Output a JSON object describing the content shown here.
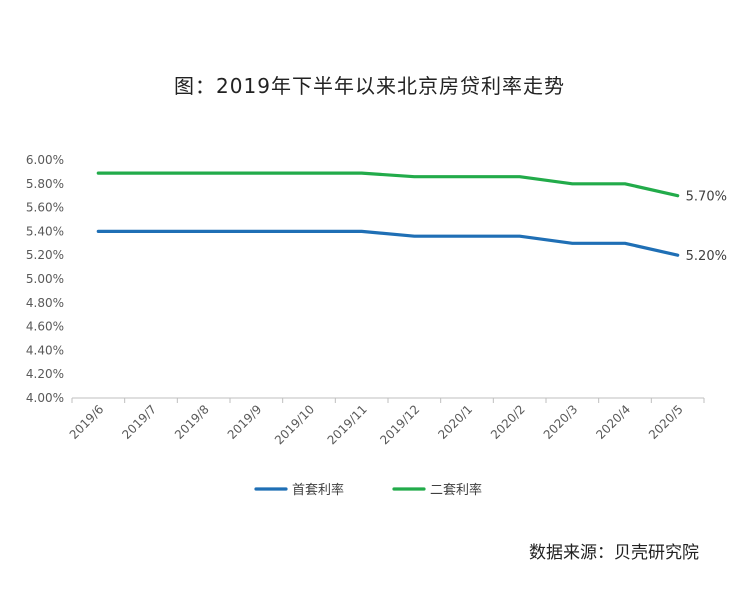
{
  "title": "图：2019年下半年以来北京房贷利率走势",
  "source": "数据来源：贝壳研究院",
  "chart_data": {
    "type": "line",
    "categories": [
      "2019/6",
      "2019/7",
      "2019/8",
      "2019/9",
      "2019/10",
      "2019/11",
      "2019/12",
      "2020/1",
      "2020/2",
      "2020/3",
      "2020/4",
      "2020/5"
    ],
    "series": [
      {
        "name": "首套利率",
        "color": "#1f6fb5",
        "values": [
          5.4,
          5.4,
          5.4,
          5.4,
          5.4,
          5.4,
          5.36,
          5.36,
          5.36,
          5.3,
          5.3,
          5.2
        ],
        "end_label": "5.20%"
      },
      {
        "name": "二套利率",
        "color": "#22ab4a",
        "values": [
          5.89,
          5.89,
          5.89,
          5.89,
          5.89,
          5.89,
          5.86,
          5.86,
          5.86,
          5.8,
          5.8,
          5.7
        ],
        "end_label": "5.70%"
      }
    ],
    "y_ticks": [
      "4.00%",
      "4.20%",
      "4.40%",
      "4.60%",
      "4.80%",
      "5.00%",
      "5.20%",
      "5.40%",
      "5.60%",
      "5.80%",
      "6.00%"
    ],
    "ylim": [
      4.0,
      6.0
    ],
    "grid": false,
    "legend_position": "bottom"
  }
}
